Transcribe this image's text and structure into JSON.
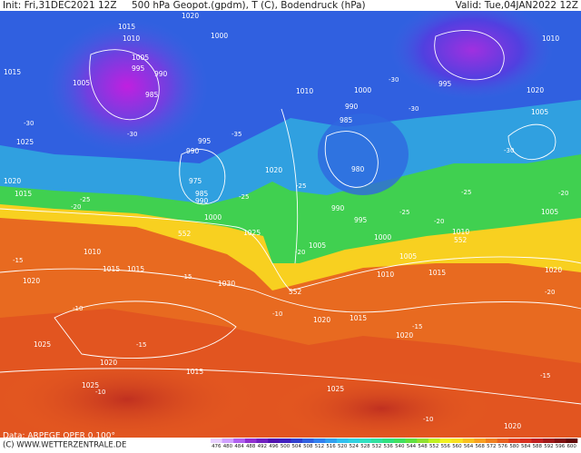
{
  "header": {
    "init": "Init: Fri,31DEC2021 12Z",
    "title": "500 hPa Geopot.(gpdm), T (C), Bodendruck (hPa)",
    "valid": "Valid: Tue,04JAN2022 12Z"
  },
  "footer": {
    "source": "Data: ARPEGE OPER 0.100°",
    "copyright": "(C) WWW.WETTERZENTRALE.DE"
  },
  "pressure_labels": [
    "1020",
    "1015",
    "1010",
    "1005",
    "995",
    "990",
    "985",
    "1000",
    "1005",
    "995",
    "990",
    "975",
    "985",
    "990",
    "1000",
    "1020",
    "1010",
    "985",
    "990",
    "980",
    "990",
    "995",
    "1000",
    "995",
    "1005",
    "1010",
    "1015",
    "1020",
    "1025",
    "1025",
    "1030",
    "1020",
    "1025",
    "1015",
    "1020",
    "1025",
    "1015",
    "1020",
    "1010",
    "1005",
    "1015",
    "1020",
    "1015",
    "1010",
    "1005",
    "1020",
    "1025",
    "1015",
    "1020",
    "1000",
    "1005",
    "1010",
    "1015",
    "1020"
  ],
  "geopotential_labels": [
    "552",
    "552",
    "552"
  ],
  "temperature_labels": [
    "-30",
    "-35",
    "-30",
    "-25",
    "-30",
    "-25",
    "-20",
    "-25",
    "-20",
    "-15",
    "-20",
    "-15",
    "-10",
    "-15",
    "-10",
    "-10",
    "-15",
    "-20",
    "-25",
    "-30",
    "-30",
    "-25",
    "-20",
    "-15",
    "-10"
  ],
  "legend": {
    "labels": [
      "476",
      "480",
      "484",
      "488",
      "492",
      "496",
      "500",
      "504",
      "508",
      "512",
      "516",
      "520",
      "524",
      "528",
      "532",
      "536",
      "540",
      "544",
      "548",
      "552",
      "556",
      "560",
      "564",
      "568",
      "572",
      "576",
      "580",
      "584",
      "588",
      "592",
      "596",
      "600"
    ],
    "colors": [
      "#e8d0ff",
      "#d0a0ff",
      "#b060f0",
      "#9030d0",
      "#7020c0",
      "#5010b0",
      "#4020c0",
      "#3040d0",
      "#3060e0",
      "#3080f0",
      "#30a0f0",
      "#30c0f0",
      "#30d0e0",
      "#30e0c0",
      "#30e0a0",
      "#30e080",
      "#40e060",
      "#60e040",
      "#90e030",
      "#c0f020",
      "#f0f020",
      "#f8e020",
      "#f8c020",
      "#f8a020",
      "#f08020",
      "#e86020",
      "#e04020",
      "#d83020",
      "#c02020",
      "#a01818",
      "#801010",
      "#600808"
    ]
  }
}
